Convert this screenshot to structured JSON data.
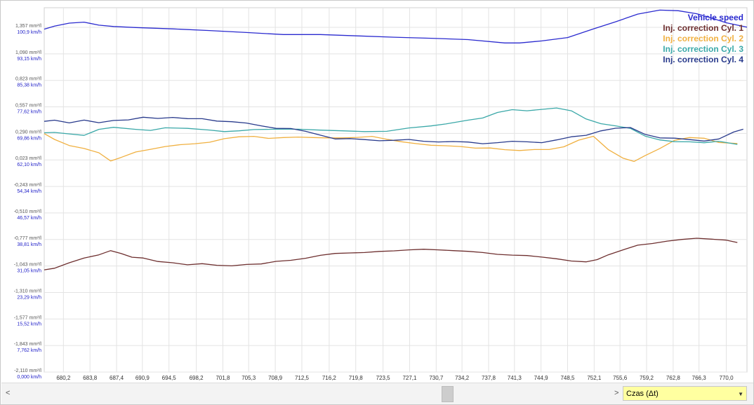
{
  "chart_data": {
    "type": "line",
    "xlabel": "Czas (Δt)",
    "x_ticks": [
      "680,2",
      "683,8",
      "687,4",
      "690,9",
      "694,5",
      "698,2",
      "701,8",
      "705,3",
      "708,9",
      "712,5",
      "716,2",
      "719,8",
      "723,5",
      "727,1",
      "730,7",
      "734,2",
      "737,8",
      "741,3",
      "744,9",
      "748,5",
      "752,1",
      "755,6",
      "759,2",
      "762,8",
      "766,3",
      "770,0"
    ],
    "xlim": [
      677.6,
      772.8
    ],
    "ylim_left": [
      -2.11,
      1.557
    ],
    "ylim_right": [
      0.0,
      108.6
    ],
    "left_ticks": [
      "1,357 mm³/l",
      "1,090 mm³/l",
      "0,823 mm³/l",
      "0,557 mm³/l",
      "0,290 mm³/l",
      "0,023 mm³/l",
      "-0,243 mm³/l",
      "-0,510 mm³/l",
      "-0,777 mm³/l",
      "-1,043 mm³/l",
      "-1,310 mm³/l",
      "-1,577 mm³/l",
      "-1,843 mm³/l",
      "-2,110 mm³/l"
    ],
    "right_ticks": [
      "100,9 km/h",
      "93,15 km/h",
      "85,38 km/h",
      "77,62 km/h",
      "69,86 km/h",
      "62,10 km/h",
      "54,34 km/h",
      "46,57 km/h",
      "38,81 km/h",
      "31,05 km/h",
      "23,29 km/h",
      "15,52 km/h",
      "7,762 km/h",
      "0,000 km/h"
    ],
    "grid": true,
    "legend_position": "top-right",
    "series": [
      {
        "name": "Vehicle speed",
        "axis": "right",
        "color": "#2a2acf",
        "points": [
          [
            677.6,
            102.2
          ],
          [
            679.0,
            103.1
          ],
          [
            681.0,
            104.0
          ],
          [
            683.0,
            104.3
          ],
          [
            685.0,
            103.4
          ],
          [
            687.0,
            103.0
          ],
          [
            690.0,
            102.7
          ],
          [
            695.0,
            102.3
          ],
          [
            700.0,
            101.8
          ],
          [
            705.0,
            101.2
          ],
          [
            710.0,
            100.6
          ],
          [
            715.0,
            100.6
          ],
          [
            720.0,
            100.2
          ],
          [
            725.0,
            99.8
          ],
          [
            730.0,
            99.5
          ],
          [
            735.0,
            99.1
          ],
          [
            740.0,
            98.1
          ],
          [
            742.0,
            98.1
          ],
          [
            745.0,
            98.7
          ],
          [
            748.5,
            99.7
          ],
          [
            752.0,
            102.3
          ],
          [
            755.0,
            104.4
          ],
          [
            758.0,
            106.7
          ],
          [
            761.0,
            107.9
          ],
          [
            763.5,
            107.7
          ],
          [
            766.0,
            106.8
          ],
          [
            768.0,
            105.5
          ],
          [
            770.0,
            104.1
          ],
          [
            772.8,
            102.8
          ]
        ]
      },
      {
        "name": "Inj. correction Cyl. 1",
        "axis": "left",
        "color": "#6d2e2e",
        "points": [
          [
            677.6,
            -1.081
          ],
          [
            679.0,
            -1.065
          ],
          [
            681.0,
            -1.01
          ],
          [
            683.0,
            -0.963
          ],
          [
            685.0,
            -0.93
          ],
          [
            686.6,
            -0.888
          ],
          [
            688.0,
            -0.916
          ],
          [
            689.5,
            -0.954
          ],
          [
            691.0,
            -0.962
          ],
          [
            693.0,
            -0.997
          ],
          [
            695.0,
            -1.01
          ],
          [
            697.0,
            -1.03
          ],
          [
            699.0,
            -1.019
          ],
          [
            701.0,
            -1.035
          ],
          [
            703.0,
            -1.041
          ],
          [
            705.0,
            -1.027
          ],
          [
            707.0,
            -1.022
          ],
          [
            709.0,
            -0.996
          ],
          [
            711.0,
            -0.985
          ],
          [
            713.0,
            -0.965
          ],
          [
            715.0,
            -0.935
          ],
          [
            717.0,
            -0.916
          ],
          [
            719.0,
            -0.911
          ],
          [
            721.0,
            -0.907
          ],
          [
            723.0,
            -0.896
          ],
          [
            725.0,
            -0.89
          ],
          [
            727.0,
            -0.88
          ],
          [
            729.0,
            -0.874
          ],
          [
            731.0,
            -0.88
          ],
          [
            733.0,
            -0.888
          ],
          [
            735.0,
            -0.895
          ],
          [
            737.0,
            -0.907
          ],
          [
            739.0,
            -0.925
          ],
          [
            741.0,
            -0.933
          ],
          [
            743.0,
            -0.937
          ],
          [
            745.0,
            -0.953
          ],
          [
            747.0,
            -0.97
          ],
          [
            749.0,
            -0.992
          ],
          [
            751.0,
            -1.001
          ],
          [
            752.5,
            -0.978
          ],
          [
            754.0,
            -0.93
          ],
          [
            756.0,
            -0.88
          ],
          [
            758.0,
            -0.833
          ],
          [
            760.0,
            -0.816
          ],
          [
            762.0,
            -0.792
          ],
          [
            764.0,
            -0.775
          ],
          [
            766.0,
            -0.763
          ],
          [
            768.0,
            -0.772
          ],
          [
            770.0,
            -0.782
          ],
          [
            771.5,
            -0.806
          ]
        ]
      },
      {
        "name": "Inj. correction Cyl. 2",
        "axis": "left",
        "color": "#f0b040",
        "points": [
          [
            677.6,
            0.29
          ],
          [
            679.0,
            0.231
          ],
          [
            681.0,
            0.17
          ],
          [
            683.0,
            0.14
          ],
          [
            685.0,
            0.097
          ],
          [
            686.6,
            0.015
          ],
          [
            688.0,
            0.05
          ],
          [
            690.0,
            0.105
          ],
          [
            692.0,
            0.132
          ],
          [
            694.0,
            0.16
          ],
          [
            696.0,
            0.178
          ],
          [
            698.0,
            0.188
          ],
          [
            700.0,
            0.203
          ],
          [
            702.0,
            0.239
          ],
          [
            704.0,
            0.258
          ],
          [
            706.0,
            0.262
          ],
          [
            708.0,
            0.242
          ],
          [
            710.0,
            0.25
          ],
          [
            712.0,
            0.255
          ],
          [
            714.0,
            0.25
          ],
          [
            716.0,
            0.247
          ],
          [
            718.0,
            0.247
          ],
          [
            720.0,
            0.252
          ],
          [
            722.0,
            0.262
          ],
          [
            724.0,
            0.233
          ],
          [
            726.0,
            0.208
          ],
          [
            728.0,
            0.189
          ],
          [
            730.0,
            0.173
          ],
          [
            732.0,
            0.168
          ],
          [
            734.0,
            0.16
          ],
          [
            736.0,
            0.144
          ],
          [
            738.0,
            0.145
          ],
          [
            740.0,
            0.128
          ],
          [
            742.0,
            0.12
          ],
          [
            744.0,
            0.13
          ],
          [
            746.0,
            0.13
          ],
          [
            748.0,
            0.157
          ],
          [
            750.0,
            0.224
          ],
          [
            752.0,
            0.263
          ],
          [
            754.0,
            0.13
          ],
          [
            756.0,
            0.043
          ],
          [
            757.5,
            0.01
          ],
          [
            759.0,
            0.068
          ],
          [
            761.0,
            0.14
          ],
          [
            763.0,
            0.223
          ],
          [
            765.0,
            0.25
          ],
          [
            767.0,
            0.243
          ],
          [
            769.0,
            0.2
          ],
          [
            771.5,
            0.19
          ]
        ]
      },
      {
        "name": "Inj. correction Cyl. 3",
        "axis": "left",
        "color": "#3aa8a8",
        "points": [
          [
            677.6,
            0.298
          ],
          [
            679.0,
            0.302
          ],
          [
            681.0,
            0.287
          ],
          [
            683.0,
            0.272
          ],
          [
            685.0,
            0.333
          ],
          [
            687.0,
            0.353
          ],
          [
            690.0,
            0.333
          ],
          [
            692.0,
            0.322
          ],
          [
            694.0,
            0.348
          ],
          [
            697.0,
            0.343
          ],
          [
            700.0,
            0.326
          ],
          [
            702.0,
            0.31
          ],
          [
            704.0,
            0.318
          ],
          [
            706.0,
            0.331
          ],
          [
            709.0,
            0.334
          ],
          [
            712.0,
            0.334
          ],
          [
            715.0,
            0.325
          ],
          [
            718.0,
            0.318
          ],
          [
            721.0,
            0.31
          ],
          [
            724.0,
            0.313
          ],
          [
            727.0,
            0.347
          ],
          [
            730.0,
            0.367
          ],
          [
            732.0,
            0.387
          ],
          [
            735.0,
            0.425
          ],
          [
            737.0,
            0.447
          ],
          [
            739.0,
            0.503
          ],
          [
            741.0,
            0.531
          ],
          [
            743.0,
            0.52
          ],
          [
            745.0,
            0.534
          ],
          [
            747.0,
            0.548
          ],
          [
            749.0,
            0.52
          ],
          [
            751.0,
            0.437
          ],
          [
            753.0,
            0.39
          ],
          [
            755.0,
            0.368
          ],
          [
            757.0,
            0.343
          ],
          [
            759.0,
            0.265
          ],
          [
            761.0,
            0.226
          ],
          [
            763.0,
            0.209
          ],
          [
            765.0,
            0.207
          ],
          [
            767.0,
            0.198
          ],
          [
            769.0,
            0.213
          ],
          [
            771.5,
            0.181
          ]
        ]
      },
      {
        "name": "Inj. correction Cyl. 4",
        "axis": "left",
        "color": "#283a8c",
        "points": [
          [
            677.6,
            0.413
          ],
          [
            679.0,
            0.425
          ],
          [
            681.0,
            0.398
          ],
          [
            683.0,
            0.426
          ],
          [
            685.0,
            0.4
          ],
          [
            687.0,
            0.422
          ],
          [
            689.0,
            0.428
          ],
          [
            691.0,
            0.455
          ],
          [
            693.0,
            0.443
          ],
          [
            695.0,
            0.453
          ],
          [
            697.0,
            0.441
          ],
          [
            699.0,
            0.44
          ],
          [
            701.0,
            0.416
          ],
          [
            703.0,
            0.41
          ],
          [
            705.0,
            0.396
          ],
          [
            707.0,
            0.368
          ],
          [
            709.0,
            0.343
          ],
          [
            711.0,
            0.341
          ],
          [
            713.0,
            0.313
          ],
          [
            715.0,
            0.274
          ],
          [
            717.0,
            0.236
          ],
          [
            719.0,
            0.24
          ],
          [
            721.0,
            0.23
          ],
          [
            723.0,
            0.218
          ],
          [
            725.0,
            0.223
          ],
          [
            727.0,
            0.231
          ],
          [
            729.0,
            0.213
          ],
          [
            731.0,
            0.206
          ],
          [
            733.0,
            0.21
          ],
          [
            735.0,
            0.205
          ],
          [
            737.0,
            0.188
          ],
          [
            739.0,
            0.199
          ],
          [
            741.0,
            0.213
          ],
          [
            743.0,
            0.207
          ],
          [
            745.0,
            0.199
          ],
          [
            747.0,
            0.226
          ],
          [
            749.0,
            0.258
          ],
          [
            751.0,
            0.273
          ],
          [
            753.0,
            0.317
          ],
          [
            755.0,
            0.344
          ],
          [
            757.0,
            0.351
          ],
          [
            759.0,
            0.282
          ],
          [
            761.0,
            0.247
          ],
          [
            763.0,
            0.244
          ],
          [
            765.0,
            0.23
          ],
          [
            767.0,
            0.215
          ],
          [
            769.0,
            0.236
          ],
          [
            771.0,
            0.306
          ],
          [
            772.3,
            0.334
          ]
        ]
      }
    ]
  },
  "controls": {
    "scroll_left": "<",
    "scroll_right": ">",
    "axis_select_value": "Czas (Δt)"
  }
}
